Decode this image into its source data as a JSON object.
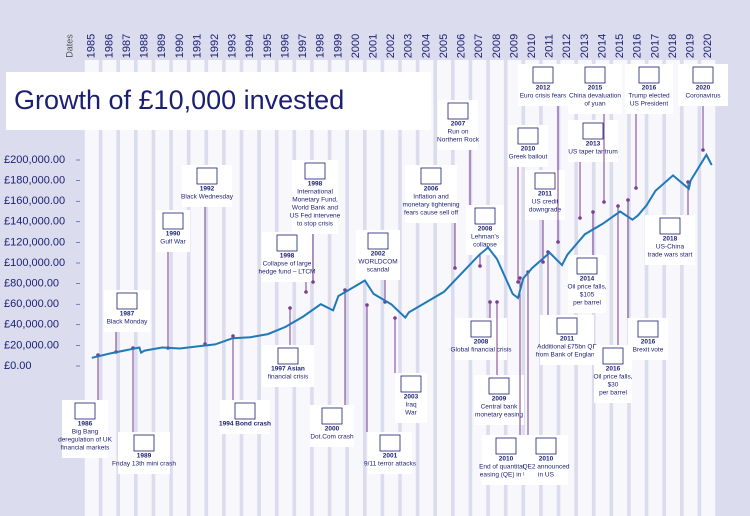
{
  "chart_data": {
    "type": "line",
    "title": "Growth of £10,000 invested",
    "xlabel": "Dates",
    "xlim": [
      1984.5,
      2020.5
    ],
    "xticks": [
      1985,
      1986,
      1987,
      1988,
      1989,
      1990,
      1991,
      1992,
      1993,
      1994,
      1995,
      1996,
      1997,
      1998,
      1999,
      2000,
      2001,
      2002,
      2003,
      2004,
      2005,
      2006,
      2007,
      2008,
      2009,
      2010,
      2011,
      2012,
      2013,
      2014,
      2015,
      2016,
      2017,
      2018,
      2019,
      2020
    ],
    "ylim": [
      0,
      220000
    ],
    "yticks": [
      {
        "value": 0,
        "label": "£0.00"
      },
      {
        "value": 20000,
        "label": "£20,000.00"
      },
      {
        "value": 40000,
        "label": "£40,000.00"
      },
      {
        "value": 60000,
        "label": "£60,000.00"
      },
      {
        "value": 80000,
        "label": "£80,000.00"
      },
      {
        "value": 100000,
        "label": "£100,000.00"
      },
      {
        "value": 120000,
        "label": "£120,000.00"
      },
      {
        "value": 140000,
        "label": "£140,000.00"
      },
      {
        "value": 160000,
        "label": "£160,000.00"
      },
      {
        "value": 180000,
        "label": "£180,000.00"
      },
      {
        "value": 200000,
        "label": "£200,000.00"
      }
    ],
    "color": "#1f7ab8",
    "x": [
      1985,
      1986,
      1987.7,
      1987.8,
      1988,
      1989,
      1990,
      1991,
      1992,
      1993,
      1994,
      1995,
      1996,
      1997,
      1998,
      1998.7,
      1999,
      2000,
      2000.5,
      2001,
      2002,
      2002.8,
      2003,
      2004,
      2005,
      2006,
      2007,
      2007.5,
      2008,
      2008.9,
      2009.2,
      2009.5,
      2010,
      2011,
      2011.7,
      2012,
      2013,
      2014,
      2015,
      2015.7,
      2016,
      2016.5,
      2017,
      2018,
      2018.9,
      2019,
      2019.9,
      2020.2
    ],
    "values": [
      8000,
      12000,
      18000,
      13000,
      15000,
      18000,
      17000,
      19000,
      21000,
      27000,
      28000,
      31000,
      38000,
      48000,
      60000,
      54000,
      68000,
      78000,
      83000,
      70000,
      60000,
      47000,
      52000,
      62000,
      72000,
      90000,
      108000,
      115000,
      104000,
      70000,
      66000,
      85000,
      95000,
      110000,
      98000,
      108000,
      128000,
      138000,
      150000,
      142000,
      146000,
      156000,
      170000,
      185000,
      172000,
      180000,
      205000,
      195000
    ],
    "annotations": [
      {
        "lines": [
          "1986",
          "Big Bang",
          "deregulation of UK",
          "financial markets"
        ]
      },
      {
        "lines": [
          "1987",
          "Black Monday"
        ]
      },
      {
        "lines": [
          "1989",
          "Friday 13th mini crash"
        ]
      },
      {
        "lines": [
          "1990",
          "Gulf War"
        ]
      },
      {
        "lines": [
          "1992",
          "Black Wednesday"
        ]
      },
      {
        "lines": [
          "1994 Bond crash"
        ]
      },
      {
        "lines": [
          "1997 Asian",
          "financial crisis"
        ]
      },
      {
        "lines": [
          "1998",
          "Collapse of large",
          "hedge fund – LTCM"
        ]
      },
      {
        "lines": [
          "1998",
          "International",
          "Monetary Fund,",
          "World Bank and",
          "US Fed intervene",
          "to stop crisis"
        ]
      },
      {
        "lines": [
          "2000",
          "Dot.Com crash"
        ]
      },
      {
        "lines": [
          "2001",
          "9/11 terror attacks"
        ]
      },
      {
        "lines": [
          "2002",
          "WORLDCOM",
          "scandal"
        ]
      },
      {
        "lines": [
          "2003",
          "Iraq",
          "War"
        ]
      },
      {
        "lines": [
          "2006",
          "Inflation and",
          "monetary tightening",
          "fears cause sell off"
        ]
      },
      {
        "lines": [
          "2007",
          "Run on",
          "Northern Rock"
        ]
      },
      {
        "lines": [
          "2008",
          "Lehman's",
          "collapse"
        ]
      },
      {
        "lines": [
          "2008",
          "Global financial crisis"
        ]
      },
      {
        "lines": [
          "2009",
          "Central bank",
          "monetary easing"
        ]
      },
      {
        "lines": [
          "2010",
          "Greek bailout"
        ]
      },
      {
        "lines": [
          "2010",
          "End of quantitative",
          "easing (QE) in US"
        ]
      },
      {
        "lines": [
          "2010",
          "QE2 announced",
          "in US"
        ]
      },
      {
        "lines": [
          "2011",
          "US credit",
          "downgrade"
        ]
      },
      {
        "lines": [
          "2011",
          "Additional £75bn QE",
          "from Bank of England"
        ]
      },
      {
        "lines": [
          "2012",
          "Euro crisis fears"
        ]
      },
      {
        "lines": [
          "2013",
          "US taper tantrum"
        ]
      },
      {
        "lines": [
          "2014",
          "Oil price falls,",
          "$105",
          "per barrel"
        ]
      },
      {
        "lines": [
          "2015",
          "China devaluation",
          "of yuan"
        ]
      },
      {
        "lines": [
          "2016",
          "Oil price falls,",
          "$30",
          "per barrel"
        ]
      },
      {
        "lines": [
          "2016",
          "Brexit vote"
        ]
      },
      {
        "lines": [
          "2016",
          "Trump elected",
          "US President"
        ]
      },
      {
        "lines": [
          "2018",
          "US-China",
          "trade wars start"
        ]
      },
      {
        "lines": [
          "2020",
          "Coronavirus"
        ]
      }
    ]
  }
}
